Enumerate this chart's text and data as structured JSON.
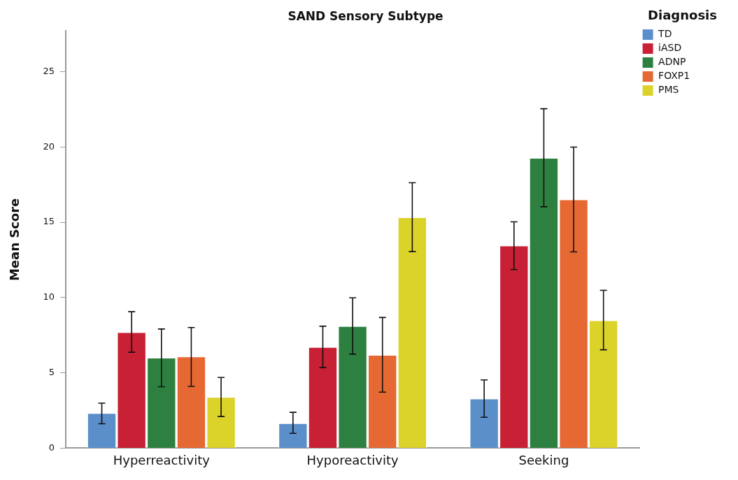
{
  "chart_data": {
    "type": "bar",
    "title": "SAND Sensory Subtype",
    "ylabel": "Mean Score",
    "legend_title": "Diagnosis",
    "legend": "top right",
    "grid": false,
    "categories": [
      "Hyperreactivity",
      "Hyporeactivity",
      "Seeking"
    ],
    "ylim": [
      0,
      27.7
    ],
    "yticks": [
      0,
      5,
      10,
      15,
      20,
      25
    ],
    "series": [
      {
        "name": "TD",
        "color": "#5b8fca",
        "values": [
          2.33,
          1.65,
          3.29
        ],
        "errors": [
          [
            1.62,
            2.99
          ],
          [
            0.98,
            2.38
          ],
          [
            2.05,
            4.53
          ]
        ]
      },
      {
        "name": "iASD",
        "color": "#c82035",
        "values": [
          7.7,
          6.71,
          13.45
        ],
        "errors": [
          [
            6.37,
            9.06
          ],
          [
            5.35,
            8.1
          ],
          [
            11.86,
            15.03
          ]
        ]
      },
      {
        "name": "ADNP",
        "color": "#2e8040",
        "values": [
          6.0,
          8.1,
          19.27
        ],
        "errors": [
          [
            4.08,
            7.91
          ],
          [
            6.24,
            9.98
          ],
          [
            16.03,
            22.54
          ]
        ]
      },
      {
        "name": "FOXP1",
        "color": "#e66832",
        "values": [
          6.08,
          6.19,
          16.51
        ],
        "errors": [
          [
            4.1,
            8.01
          ],
          [
            3.72,
            8.68
          ],
          [
            13.03,
            19.99
          ]
        ]
      },
      {
        "name": "PMS",
        "color": "#dbd22a",
        "values": [
          3.39,
          15.33,
          8.49
        ],
        "errors": [
          [
            2.1,
            4.69
          ],
          [
            13.05,
            17.63
          ],
          [
            6.53,
            10.48
          ]
        ]
      }
    ]
  }
}
